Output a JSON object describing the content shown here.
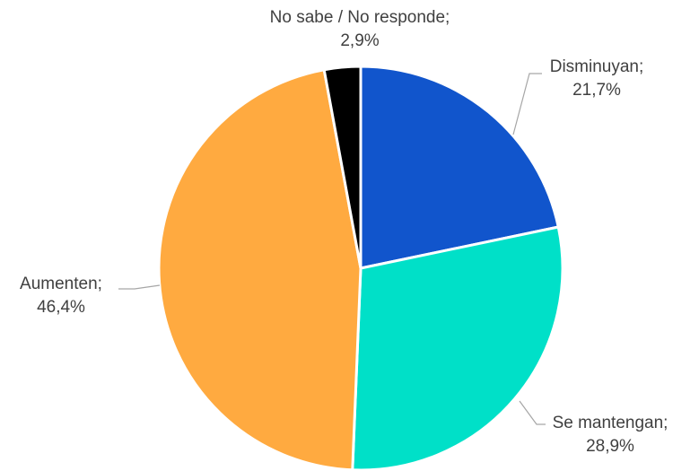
{
  "chart_data": {
    "type": "pie",
    "title": "",
    "start_angle_deg": 0,
    "direction": "clockwise",
    "slices": [
      {
        "label": "Disminuyan;",
        "value_label": "21,7%",
        "value": 21.7,
        "color": "#1155CC"
      },
      {
        "label": "Se mantengan;",
        "value_label": "28,9%",
        "value": 28.9,
        "color": "#00E0C8"
      },
      {
        "label": "Aumenten;",
        "value_label": "46,4%",
        "value": 46.4,
        "color": "#FFAA40"
      },
      {
        "label": "No sabe / No responde;",
        "value_label": "2,9%",
        "value": 2.9,
        "color": "#000000"
      }
    ]
  }
}
